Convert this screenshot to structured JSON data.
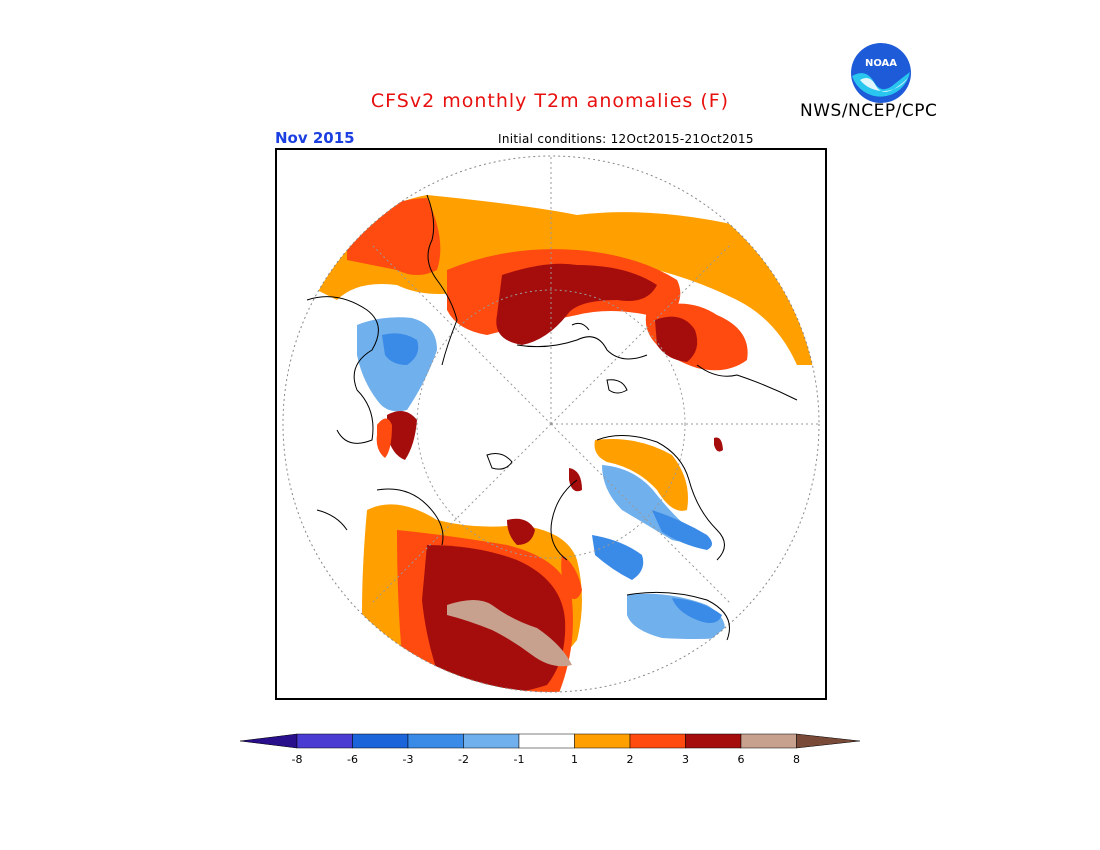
{
  "header": {
    "title": "CFSv2 monthly T2m anomalies (F)",
    "agency": "NWS/NCEP/CPC",
    "month": "Nov 2015",
    "initial_conditions": "Initial conditions: 12Oct2015-21Oct2015",
    "logo_text": "NOAA"
  },
  "colorbar": {
    "tick_labels": [
      "-8",
      "-6",
      "-3",
      "-2",
      "-1",
      "1",
      "2",
      "3",
      "6",
      "8"
    ],
    "colors": {
      "below_min": "#2a0f8c",
      "bins": [
        "#4a3bd2",
        "#1c64d9",
        "#3a8ae8",
        "#70b0ec",
        "#ffffff",
        "#ff9f00",
        "#ff4a10",
        "#a50d0d",
        "#c8a08e"
      ],
      "above_max": "#7a4a38"
    }
  },
  "map": {
    "projection": "north-polar-stereographic",
    "anomaly_colors": {
      "cold_1": "#70b0ec",
      "cold_2": "#3a8ae8",
      "cold_3": "#1c64d9",
      "warm_1": "#ff9f00",
      "warm_2": "#ff4a10",
      "warm_3": "#a50d0d",
      "warm_4": "#c8a08e"
    }
  }
}
